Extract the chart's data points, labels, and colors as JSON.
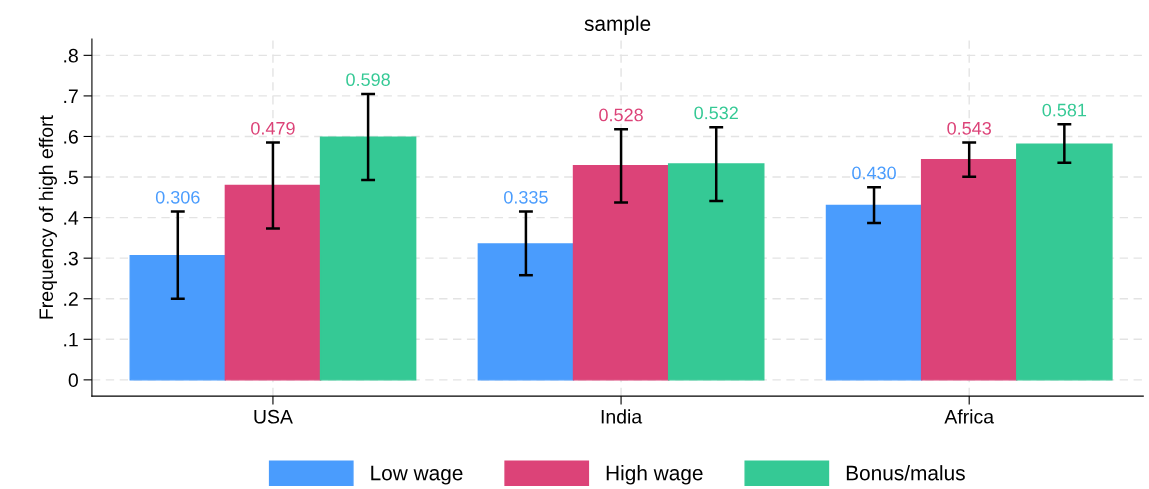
{
  "chart_data": {
    "type": "bar",
    "subtitle": "sample",
    "ylabel": "Frequency of high effort",
    "categories": [
      "USA",
      "India",
      "Africa"
    ],
    "series": [
      {
        "name": "Low wage",
        "color": "#4a9cfd",
        "values": [
          0.306,
          0.335,
          0.43
        ],
        "value_labels": [
          "0.306",
          "0.335",
          "0.430"
        ],
        "errors": [
          [
            0.2,
            0.415
          ],
          [
            0.258,
            0.415
          ],
          [
            0.387,
            0.475
          ]
        ]
      },
      {
        "name": "High wage",
        "color": "#dc4378",
        "values": [
          0.479,
          0.528,
          0.543
        ],
        "value_labels": [
          "0.479",
          "0.528",
          "0.543"
        ],
        "errors": [
          [
            0.373,
            0.585
          ],
          [
            0.437,
            0.618
          ],
          [
            0.501,
            0.585
          ]
        ]
      },
      {
        "name": "Bonus/malus",
        "color": "#35c995",
        "values": [
          0.598,
          0.532,
          0.581
        ],
        "value_labels": [
          "0.598",
          "0.532",
          "0.581"
        ],
        "errors": [
          [
            0.493,
            0.705
          ],
          [
            0.441,
            0.623
          ],
          [
            0.535,
            0.63
          ]
        ]
      }
    ],
    "ylim": [
      -0.04,
      0.84
    ],
    "yticks": [
      {
        "value": 0,
        "label": "0"
      },
      {
        "value": 0.1,
        "label": ".1"
      },
      {
        "value": 0.2,
        "label": ".2"
      },
      {
        "value": 0.3,
        "label": ".3"
      },
      {
        "value": 0.4,
        "label": ".4"
      },
      {
        "value": 0.5,
        "label": ".5"
      },
      {
        "value": 0.6,
        "label": ".6"
      },
      {
        "value": 0.7,
        "label": ".7"
      },
      {
        "value": 0.8,
        "label": ".8"
      }
    ],
    "grid": true,
    "legend": "bottom"
  }
}
